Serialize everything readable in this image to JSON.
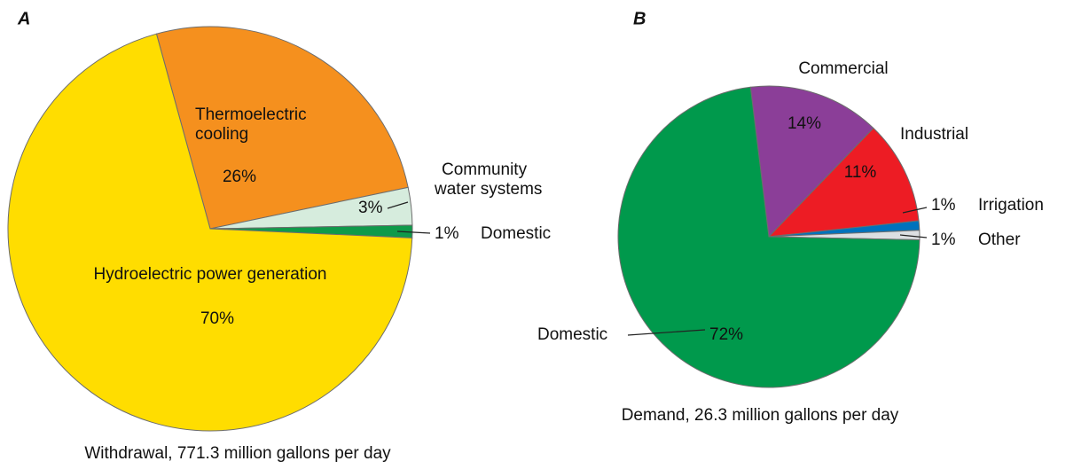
{
  "chart_data": [
    {
      "type": "pie",
      "title": "A",
      "caption": "Withdrawal, 771.3 million gallons per day",
      "categories": [
        "Thermoelectric cooling",
        "Community water systems",
        "Domestic",
        "Hydroelectric power generation"
      ],
      "values": [
        26,
        3,
        1,
        70
      ],
      "value_labels": [
        "26%",
        "3%",
        "1%",
        "70%"
      ],
      "colors": [
        "#f5901e",
        "#d6ecdd",
        "#0f9a4a",
        "#ffdd00"
      ]
    },
    {
      "type": "pie",
      "title": "B",
      "caption": "Demand, 26.3 million gallons per day",
      "categories": [
        "Commercial",
        "Industrial",
        "Irrigation",
        "Other",
        "Domestic"
      ],
      "values": [
        14,
        11,
        1,
        1,
        72
      ],
      "value_labels": [
        "14%",
        "11%",
        "1%",
        "1%",
        "72%"
      ],
      "colors": [
        "#8b3e98",
        "#ed1c24",
        "#0072bc",
        "#dcdfe2",
        "#00994c"
      ]
    }
  ]
}
